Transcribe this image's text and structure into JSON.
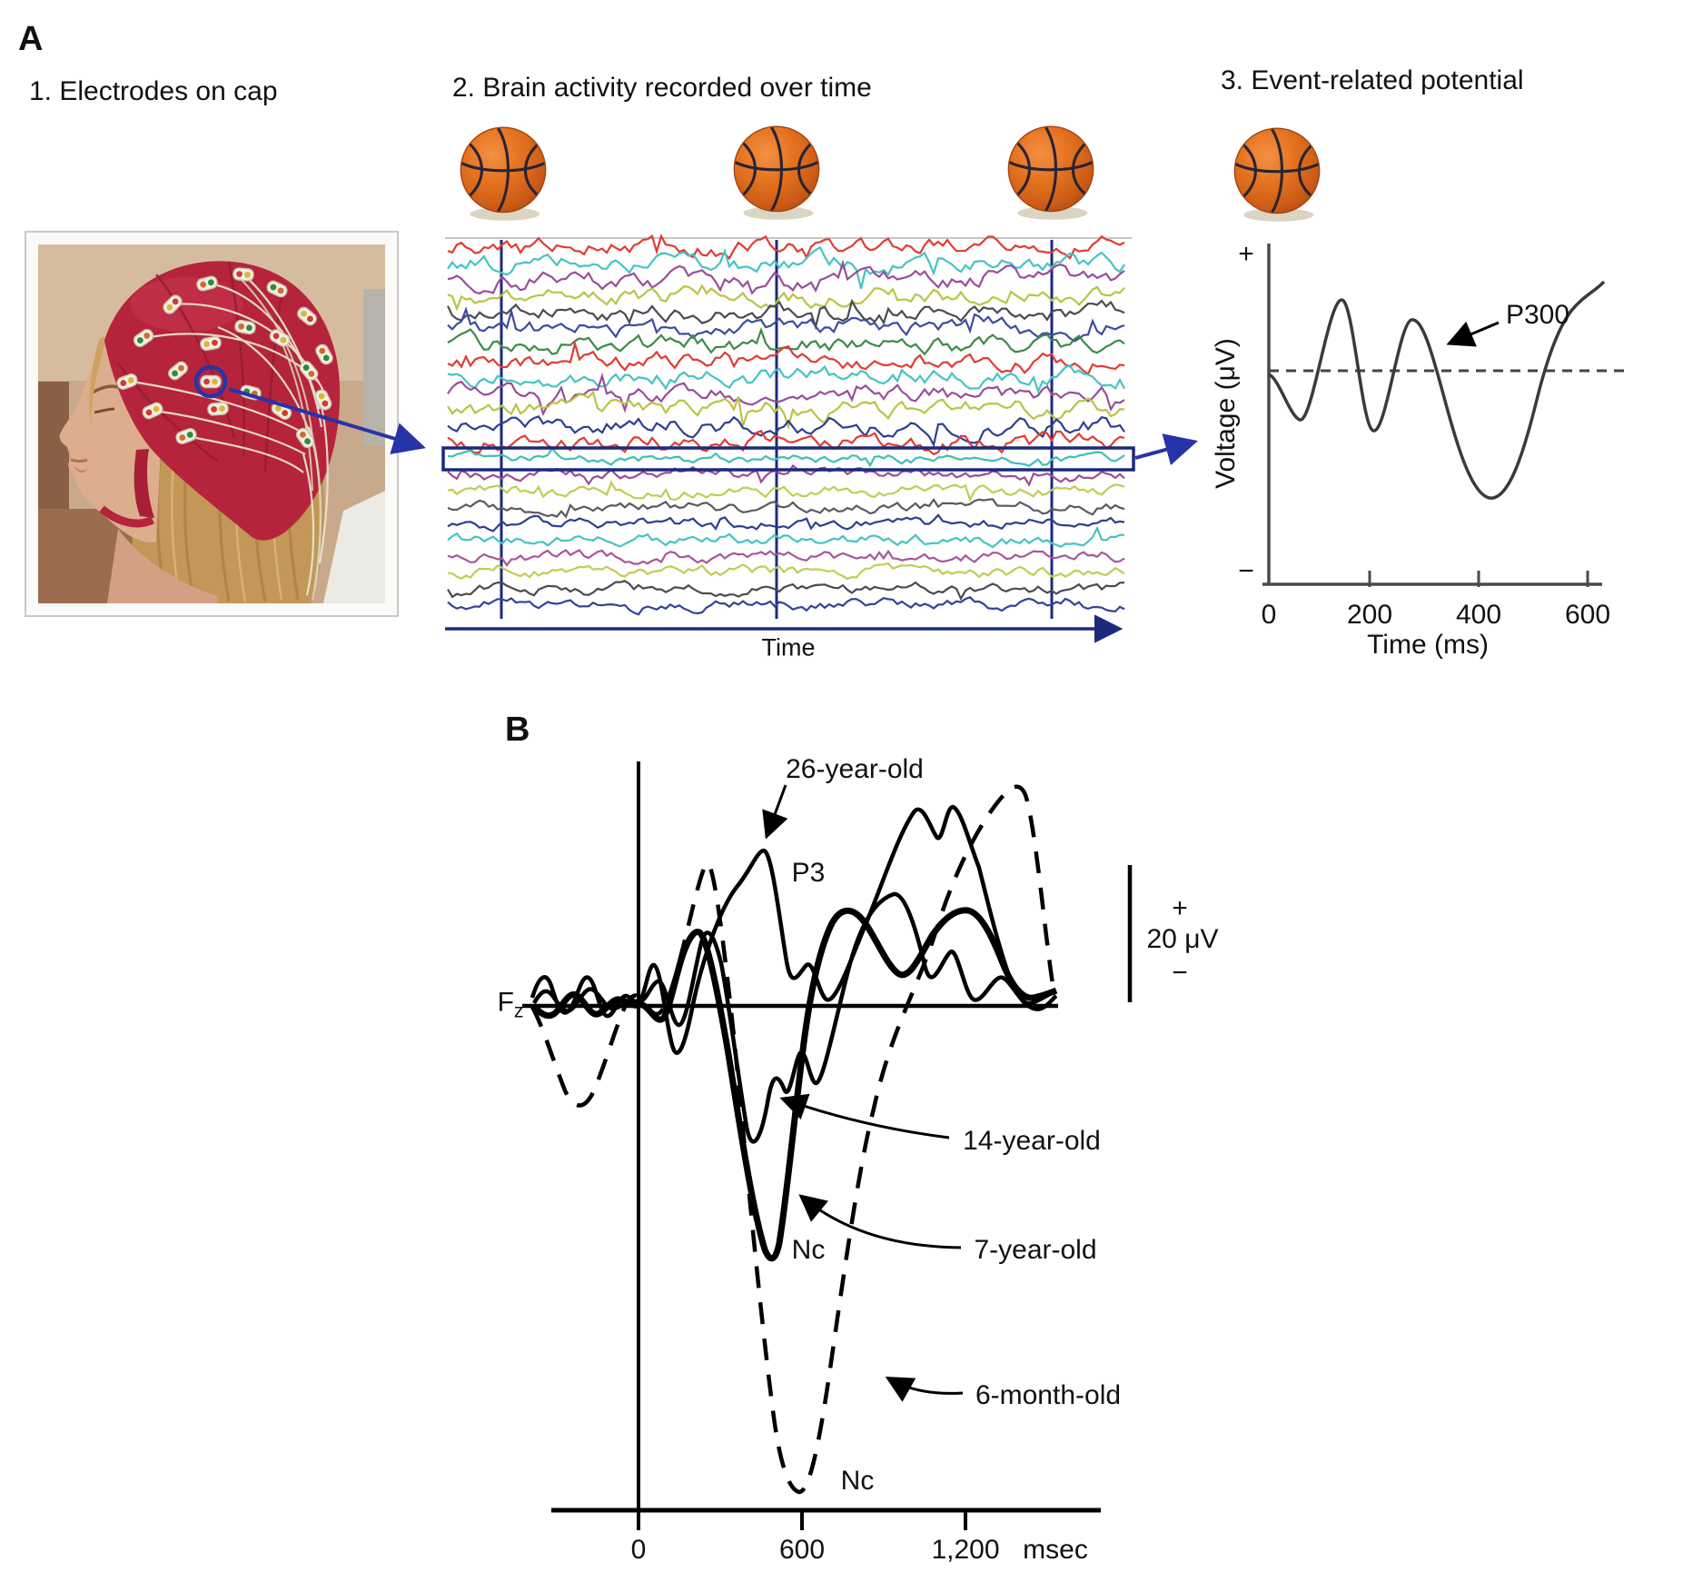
{
  "figure": {
    "panel_a_label": "A",
    "panel_b_label": "B",
    "step1_title": "1. Electrodes on cap",
    "step2_title": "2. Brain activity recorded over time",
    "step3_title": "3. Event-related potential",
    "eeg": {
      "time_axis_label": "Time",
      "trace_colors": [
        "#e23b33",
        "#46c3c3",
        "#9a4d9a",
        "#b9c445",
        "#4a4a52",
        "#3c4ca0",
        "#3d8a47",
        "#e23b33",
        "#46c3c3",
        "#9a4d9a",
        "#b9c445",
        "#2e3f92",
        "#e23b33",
        "#3fbfb4",
        "#9a4d9a",
        "#c2cc55",
        "#5a5a60",
        "#2e3f92",
        "#46c3c3",
        "#a8569c",
        "#c2cc55",
        "#4a4a52",
        "#33439a"
      ],
      "highlight_index": 13
    },
    "erp": {
      "ylabel": "Voltage (μV)",
      "xlabel": "Time (ms)",
      "plus": "+",
      "minus": "−",
      "x_ticks": [
        "0",
        "200",
        "400",
        "600"
      ],
      "peak_label": "P300"
    },
    "panel_b": {
      "electrode_main": "F",
      "electrode_sub": "z",
      "scale_plus": "+",
      "scale_value": "20 μV",
      "scale_minus": "−",
      "labels": {
        "adult": "26-year-old",
        "p3": "P3",
        "teen": "14-year-old",
        "child": "7-year-old",
        "child_peak": "Nc",
        "infant": "6-month-old",
        "infant_peak": "Nc"
      },
      "x_ticks": [
        "0",
        "600",
        "1,200"
      ],
      "x_unit": "msec"
    },
    "colors": {
      "navy": "#1b2a7b",
      "blue_arrow": "#2733a8",
      "erp_line": "#3a3a3a",
      "cap_red": "#b5243c",
      "basketball_orange": "#e4721f"
    }
  }
}
